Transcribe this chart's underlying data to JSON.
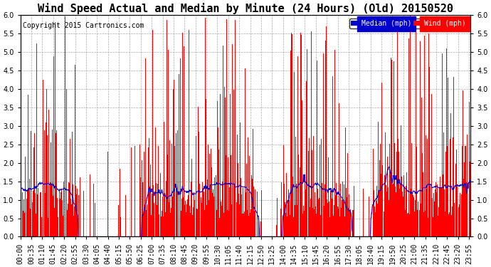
{
  "title": "Wind Speed Actual and Median by Minute (24 Hours) (Old) 20150520",
  "copyright": "Copyright 2015 Cartronics.com",
  "ylim": [
    0.0,
    6.0
  ],
  "yticks": [
    0.0,
    0.5,
    1.0,
    1.5,
    2.0,
    2.5,
    3.0,
    3.5,
    4.0,
    4.5,
    5.0,
    5.5,
    6.0
  ],
  "legend_median_label": "Median (mph)",
  "legend_wind_label": "Wind (mph)",
  "legend_median_color": "#0000cc",
  "legend_wind_color": "#ff0000",
  "bar_color": "#ff0000",
  "line_color": "#0000cc",
  "background_color": "#ffffff",
  "grid_color": "#aaaaaa",
  "title_fontsize": 11,
  "copyright_fontsize": 7,
  "tick_fontsize": 7,
  "num_minutes": 1440,
  "xtick_interval": 35
}
